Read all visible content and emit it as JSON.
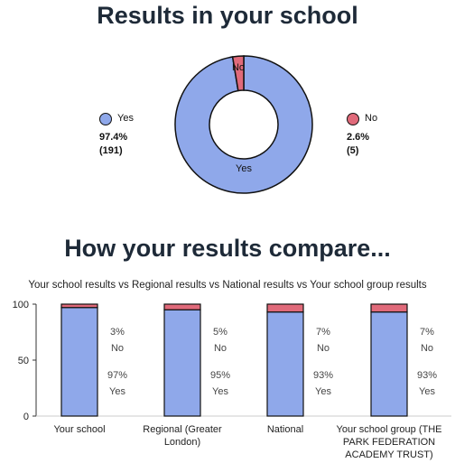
{
  "page": {
    "title": "Results in your school",
    "compare_title": "How your results compare..."
  },
  "chart_data": [
    {
      "type": "pie",
      "style": "donut",
      "slices": [
        {
          "label": "Yes",
          "percent": "97.4%",
          "count": "(191)",
          "value": 97.4,
          "color": "#8fa8ea"
        },
        {
          "label": "No",
          "percent": "2.6%",
          "count": "(5)",
          "value": 2.6,
          "color": "#e06a7a"
        }
      ]
    },
    {
      "type": "bar",
      "stacked": true,
      "title": "Your school results vs Regional results vs National results vs Your school group results",
      "ylim": [
        0,
        100
      ],
      "yticks": [
        "0",
        "50",
        "100"
      ],
      "grid": false,
      "categories": [
        [
          "Your school"
        ],
        [
          "Regional (Greater",
          "London)"
        ],
        [
          "National"
        ],
        [
          "Your school group (THE",
          "PARK FEDERATION",
          "ACADEMY TRUST)"
        ]
      ],
      "series": [
        {
          "name": "Yes",
          "values": [
            97,
            95,
            93,
            93
          ],
          "labels": [
            "97%",
            "95%",
            "93%",
            "93%"
          ],
          "color": "#8fa8ea"
        },
        {
          "name": "No",
          "values": [
            3,
            5,
            7,
            7
          ],
          "labels": [
            "3%",
            "5%",
            "7%",
            "7%"
          ],
          "color": "#e06a7a"
        }
      ]
    }
  ]
}
